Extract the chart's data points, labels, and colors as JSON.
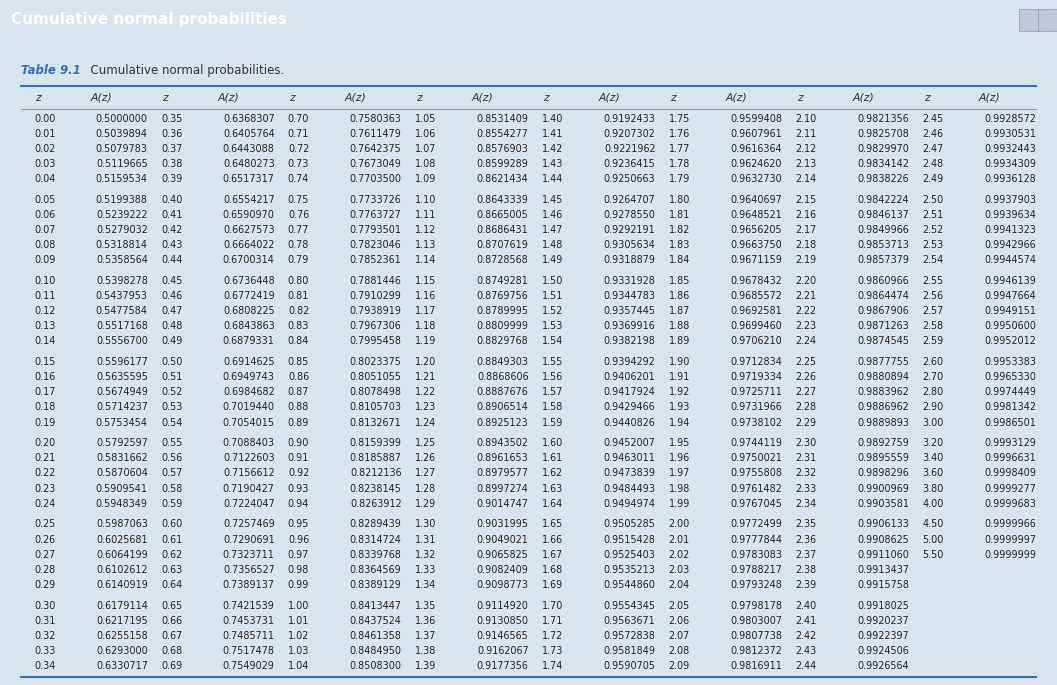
{
  "title": "Cumulative normal probabilities",
  "table_label": "Table 9.1",
  "table_caption": "  Cumulative normal probabilities.",
  "header_row": [
    "z",
    "A(z)",
    "z",
    "A(z)",
    "z",
    "A(z)",
    "z",
    "A(z)",
    "z",
    "A(z)",
    "z",
    "A(z)",
    "z",
    "A(z)",
    "z",
    "A(z)"
  ],
  "title_bg": "#3C6CB4",
  "title_fg": "#FFFFFF",
  "table_label_color": "#3C6CB4",
  "body_bg": "#FFFFFF",
  "outer_bg": "#D8E4F0",
  "header_line_color": "#3C6CB4",
  "data_rows": [
    [
      "0.00",
      "0.5000000",
      "0.35",
      "0.6368307",
      "0.70",
      "0.7580363",
      "1.05",
      "0.8531409",
      "1.40",
      "0.9192433",
      "1.75",
      "0.9599408",
      "2.10",
      "0.9821356",
      "2.45",
      "0.9928572"
    ],
    [
      "0.01",
      "0.5039894",
      "0.36",
      "0.6405764",
      "0.71",
      "0.7611479",
      "1.06",
      "0.8554277",
      "1.41",
      "0.9207302",
      "1.76",
      "0.9607961",
      "2.11",
      "0.9825708",
      "2.46",
      "0.9930531"
    ],
    [
      "0.02",
      "0.5079783",
      "0.37",
      "0.6443088",
      "0.72",
      "0.7642375",
      "1.07",
      "0.8576903",
      "1.42",
      "0.9221962",
      "1.77",
      "0.9616364",
      "2.12",
      "0.9829970",
      "2.47",
      "0.9932443"
    ],
    [
      "0.03",
      "0.5119665",
      "0.38",
      "0.6480273",
      "0.73",
      "0.7673049",
      "1.08",
      "0.8599289",
      "1.43",
      "0.9236415",
      "1.78",
      "0.9624620",
      "2.13",
      "0.9834142",
      "2.48",
      "0.9934309"
    ],
    [
      "0.04",
      "0.5159534",
      "0.39",
      "0.6517317",
      "0.74",
      "0.7703500",
      "1.09",
      "0.8621434",
      "1.44",
      "0.9250663",
      "1.79",
      "0.9632730",
      "2.14",
      "0.9838226",
      "2.49",
      "0.9936128"
    ],
    [
      "",
      "",
      "",
      "",
      "",
      "",
      "",
      "",
      "",
      "",
      "",
      "",
      "",
      "",
      "",
      ""
    ],
    [
      "0.05",
      "0.5199388",
      "0.40",
      "0.6554217",
      "0.75",
      "0.7733726",
      "1.10",
      "0.8643339",
      "1.45",
      "0.9264707",
      "1.80",
      "0.9640697",
      "2.15",
      "0.9842224",
      "2.50",
      "0.9937903"
    ],
    [
      "0.06",
      "0.5239222",
      "0.41",
      "0.6590970",
      "0.76",
      "0.7763727",
      "1.11",
      "0.8665005",
      "1.46",
      "0.9278550",
      "1.81",
      "0.9648521",
      "2.16",
      "0.9846137",
      "2.51",
      "0.9939634"
    ],
    [
      "0.07",
      "0.5279032",
      "0.42",
      "0.6627573",
      "0.77",
      "0.7793501",
      "1.12",
      "0.8686431",
      "1.47",
      "0.9292191",
      "1.82",
      "0.9656205",
      "2.17",
      "0.9849966",
      "2.52",
      "0.9941323"
    ],
    [
      "0.08",
      "0.5318814",
      "0.43",
      "0.6664022",
      "0.78",
      "0.7823046",
      "1.13",
      "0.8707619",
      "1.48",
      "0.9305634",
      "1.83",
      "0.9663750",
      "2.18",
      "0.9853713",
      "2.53",
      "0.9942966"
    ],
    [
      "0.09",
      "0.5358564",
      "0.44",
      "0.6700314",
      "0.79",
      "0.7852361",
      "1.14",
      "0.8728568",
      "1.49",
      "0.9318879",
      "1.84",
      "0.9671159",
      "2.19",
      "0.9857379",
      "2.54",
      "0.9944574"
    ],
    [
      "",
      "",
      "",
      "",
      "",
      "",
      "",
      "",
      "",
      "",
      "",
      "",
      "",
      "",
      "",
      ""
    ],
    [
      "0.10",
      "0.5398278",
      "0.45",
      "0.6736448",
      "0.80",
      "0.7881446",
      "1.15",
      "0.8749281",
      "1.50",
      "0.9331928",
      "1.85",
      "0.9678432",
      "2.20",
      "0.9860966",
      "2.55",
      "0.9946139"
    ],
    [
      "0.11",
      "0.5437953",
      "0.46",
      "0.6772419",
      "0.81",
      "0.7910299",
      "1.16",
      "0.8769756",
      "1.51",
      "0.9344783",
      "1.86",
      "0.9685572",
      "2.21",
      "0.9864474",
      "2.56",
      "0.9947664"
    ],
    [
      "0.12",
      "0.5477584",
      "0.47",
      "0.6808225",
      "0.82",
      "0.7938919",
      "1.17",
      "0.8789995",
      "1.52",
      "0.9357445",
      "1.87",
      "0.9692581",
      "2.22",
      "0.9867906",
      "2.57",
      "0.9949151"
    ],
    [
      "0.13",
      "0.5517168",
      "0.48",
      "0.6843863",
      "0.83",
      "0.7967306",
      "1.18",
      "0.8809999",
      "1.53",
      "0.9369916",
      "1.88",
      "0.9699460",
      "2.23",
      "0.9871263",
      "2.58",
      "0.9950600"
    ],
    [
      "0.14",
      "0.5556700",
      "0.49",
      "0.6879331",
      "0.84",
      "0.7995458",
      "1.19",
      "0.8829768",
      "1.54",
      "0.9382198",
      "1.89",
      "0.9706210",
      "2.24",
      "0.9874545",
      "2.59",
      "0.9952012"
    ],
    [
      "",
      "",
      "",
      "",
      "",
      "",
      "",
      "",
      "",
      "",
      "",
      "",
      "",
      "",
      "",
      ""
    ],
    [
      "0.15",
      "0.5596177",
      "0.50",
      "0.6914625",
      "0.85",
      "0.8023375",
      "1.20",
      "0.8849303",
      "1.55",
      "0.9394292",
      "1.90",
      "0.9712834",
      "2.25",
      "0.9877755",
      "2.60",
      "0.9953383"
    ],
    [
      "0.16",
      "0.5635595",
      "0.51",
      "0.6949743",
      "0.86",
      "0.8051055",
      "1.21",
      "0.8868606",
      "1.56",
      "0.9406201",
      "1.91",
      "0.9719334",
      "2.26",
      "0.9880894",
      "2.70",
      "0.9965330"
    ],
    [
      "0.17",
      "0.5674949",
      "0.52",
      "0.6984682",
      "0.87",
      "0.8078498",
      "1.22",
      "0.8887676",
      "1.57",
      "0.9417924",
      "1.92",
      "0.9725711",
      "2.27",
      "0.9883962",
      "2.80",
      "0.9974449"
    ],
    [
      "0.18",
      "0.5714237",
      "0.53",
      "0.7019440",
      "0.88",
      "0.8105703",
      "1.23",
      "0.8906514",
      "1.58",
      "0.9429466",
      "1.93",
      "0.9731966",
      "2.28",
      "0.9886962",
      "2.90",
      "0.9981342"
    ],
    [
      "0.19",
      "0.5753454",
      "0.54",
      "0.7054015",
      "0.89",
      "0.8132671",
      "1.24",
      "0.8925123",
      "1.59",
      "0.9440826",
      "1.94",
      "0.9738102",
      "2.29",
      "0.9889893",
      "3.00",
      "0.9986501"
    ],
    [
      "",
      "",
      "",
      "",
      "",
      "",
      "",
      "",
      "",
      "",
      "",
      "",
      "",
      "",
      "",
      ""
    ],
    [
      "0.20",
      "0.5792597",
      "0.55",
      "0.7088403",
      "0.90",
      "0.8159399",
      "1.25",
      "0.8943502",
      "1.60",
      "0.9452007",
      "1.95",
      "0.9744119",
      "2.30",
      "0.9892759",
      "3.20",
      "0.9993129"
    ],
    [
      "0.21",
      "0.5831662",
      "0.56",
      "0.7122603",
      "0.91",
      "0.8185887",
      "1.26",
      "0.8961653",
      "1.61",
      "0.9463011",
      "1.96",
      "0.9750021",
      "2.31",
      "0.9895559",
      "3.40",
      "0.9996631"
    ],
    [
      "0.22",
      "0.5870604",
      "0.57",
      "0.7156612",
      "0.92",
      "0.8212136",
      "1.27",
      "0.8979577",
      "1.62",
      "0.9473839",
      "1.97",
      "0.9755808",
      "2.32",
      "0.9898296",
      "3.60",
      "0.9998409"
    ],
    [
      "0.23",
      "0.5909541",
      "0.58",
      "0.7190427",
      "0.93",
      "0.8238145",
      "1.28",
      "0.8997274",
      "1.63",
      "0.9484493",
      "1.98",
      "0.9761482",
      "2.33",
      "0.9900969",
      "3.80",
      "0.9999277"
    ],
    [
      "0.24",
      "0.5948349",
      "0.59",
      "0.7224047",
      "0.94",
      "0.8263912",
      "1.29",
      "0.9014747",
      "1.64",
      "0.9494974",
      "1.99",
      "0.9767045",
      "2.34",
      "0.9903581",
      "4.00",
      "0.9999683"
    ],
    [
      "",
      "",
      "",
      "",
      "",
      "",
      "",
      "",
      "",
      "",
      "",
      "",
      "",
      "",
      "",
      ""
    ],
    [
      "0.25",
      "0.5987063",
      "0.60",
      "0.7257469",
      "0.95",
      "0.8289439",
      "1.30",
      "0.9031995",
      "1.65",
      "0.9505285",
      "2.00",
      "0.9772499",
      "2.35",
      "0.9906133",
      "4.50",
      "0.9999966"
    ],
    [
      "0.26",
      "0.6025681",
      "0.61",
      "0.7290691",
      "0.96",
      "0.8314724",
      "1.31",
      "0.9049021",
      "1.66",
      "0.9515428",
      "2.01",
      "0.9777844",
      "2.36",
      "0.9908625",
      "5.00",
      "0.9999997"
    ],
    [
      "0.27",
      "0.6064199",
      "0.62",
      "0.7323711",
      "0.97",
      "0.8339768",
      "1.32",
      "0.9065825",
      "1.67",
      "0.9525403",
      "2.02",
      "0.9783083",
      "2.37",
      "0.9911060",
      "5.50",
      "0.9999999"
    ],
    [
      "0.28",
      "0.6102612",
      "0.63",
      "0.7356527",
      "0.98",
      "0.8364569",
      "1.33",
      "0.9082409",
      "1.68",
      "0.9535213",
      "2.03",
      "0.9788217",
      "2.38",
      "0.9913437",
      "",
      ""
    ],
    [
      "0.29",
      "0.6140919",
      "0.64",
      "0.7389137",
      "0.99",
      "0.8389129",
      "1.34",
      "0.9098773",
      "1.69",
      "0.9544860",
      "2.04",
      "0.9793248",
      "2.39",
      "0.9915758",
      "",
      ""
    ],
    [
      "",
      "",
      "",
      "",
      "",
      "",
      "",
      "",
      "",
      "",
      "",
      "",
      "",
      "",
      "",
      ""
    ],
    [
      "0.30",
      "0.6179114",
      "0.65",
      "0.7421539",
      "1.00",
      "0.8413447",
      "1.35",
      "0.9114920",
      "1.70",
      "0.9554345",
      "2.05",
      "0.9798178",
      "2.40",
      "0.9918025",
      "",
      ""
    ],
    [
      "0.31",
      "0.6217195",
      "0.66",
      "0.7453731",
      "1.01",
      "0.8437524",
      "1.36",
      "0.9130850",
      "1.71",
      "0.9563671",
      "2.06",
      "0.9803007",
      "2.41",
      "0.9920237",
      "",
      ""
    ],
    [
      "0.32",
      "0.6255158",
      "0.67",
      "0.7485711",
      "1.02",
      "0.8461358",
      "1.37",
      "0.9146565",
      "1.72",
      "0.9572838",
      "2.07",
      "0.9807738",
      "2.42",
      "0.9922397",
      "",
      ""
    ],
    [
      "0.33",
      "0.6293000",
      "0.68",
      "0.7517478",
      "1.03",
      "0.8484950",
      "1.38",
      "0.9162067",
      "1.73",
      "0.9581849",
      "2.08",
      "0.9812372",
      "2.43",
      "0.9924506",
      "",
      ""
    ],
    [
      "0.34",
      "0.6330717",
      "0.69",
      "0.7549029",
      "1.04",
      "0.8508300",
      "1.39",
      "0.9177356",
      "1.74",
      "0.9590705",
      "2.09",
      "0.9816911",
      "2.44",
      "0.9926564",
      "",
      ""
    ]
  ],
  "figsize": [
    10.57,
    6.85
  ],
  "dpi": 100
}
